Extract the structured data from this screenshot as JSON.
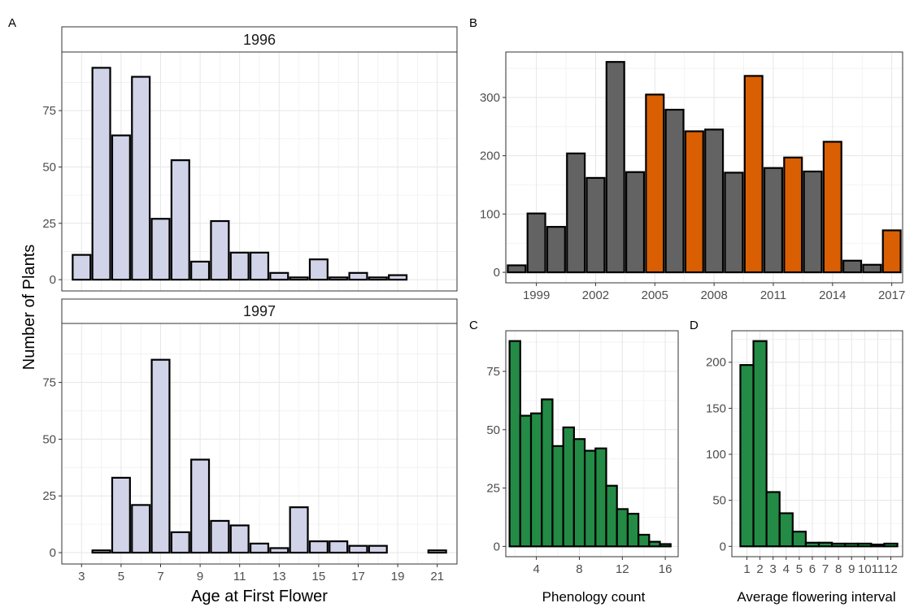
{
  "chart_data": [
    {
      "panel": "A",
      "type": "bar",
      "facet": "1996",
      "categories": [
        3,
        4,
        5,
        6,
        7,
        8,
        9,
        10,
        11,
        12,
        13,
        14,
        15,
        16,
        17,
        18,
        19
      ],
      "values": [
        11,
        94,
        64,
        90,
        27,
        53,
        8,
        26,
        12,
        12,
        3,
        1,
        9,
        1,
        3,
        1,
        2
      ],
      "xticks": [
        "3",
        "5",
        "7",
        "9",
        "11",
        "13",
        "15",
        "17",
        "19",
        "21"
      ],
      "xlim": [
        2,
        22
      ],
      "ylim": [
        -5,
        101
      ],
      "yticks": [
        "0",
        "25",
        "50",
        "75"
      ],
      "xlabel": "Age at First Flower",
      "ylabel": "Number of Plants",
      "fill": "#d1d3e8",
      "grid": true
    },
    {
      "panel": "A",
      "type": "bar",
      "facet": "1997",
      "categories": [
        4,
        5,
        6,
        7,
        8,
        9,
        10,
        11,
        12,
        13,
        14,
        15,
        16,
        17,
        18,
        21
      ],
      "values": [
        1,
        33,
        21,
        85,
        9,
        41,
        14,
        12,
        4,
        2,
        20,
        5,
        5,
        3,
        3,
        1
      ],
      "xticks": [
        "3",
        "5",
        "7",
        "9",
        "11",
        "13",
        "15",
        "17",
        "19",
        "21"
      ],
      "xlim": [
        2,
        22
      ],
      "ylim": [
        -5,
        101
      ],
      "yticks": [
        "0",
        "25",
        "50",
        "75"
      ],
      "xlabel": "Age at First Flower",
      "ylabel": "Number of Plants",
      "fill": "#d1d3e8",
      "grid": true
    },
    {
      "panel": "B",
      "type": "bar",
      "categories": [
        1998,
        1999,
        2000,
        2001,
        2002,
        2003,
        2004,
        2005,
        2006,
        2007,
        2008,
        2009,
        2010,
        2011,
        2012,
        2013,
        2014,
        2015,
        2016,
        2017
      ],
      "values": [
        12,
        101,
        78,
        204,
        162,
        361,
        172,
        305,
        279,
        242,
        245,
        171,
        337,
        179,
        197,
        173,
        224,
        20,
        13,
        72
      ],
      "highlight": [
        false,
        false,
        false,
        false,
        false,
        false,
        false,
        true,
        false,
        true,
        false,
        false,
        true,
        false,
        true,
        false,
        true,
        false,
        false,
        true
      ],
      "xticks": [
        "1999",
        "2002",
        "2005",
        "2008",
        "2011",
        "2014",
        "2017"
      ],
      "xlim": [
        1997.45,
        2017.55
      ],
      "ylim": [
        -18,
        378
      ],
      "yticks": [
        "0",
        "100",
        "200",
        "300"
      ],
      "colors": {
        "default": "#636363",
        "highlight": "#d95f02"
      },
      "grid": true
    },
    {
      "panel": "C",
      "type": "bar",
      "categories": [
        2,
        3,
        4,
        5,
        6,
        7,
        8,
        9,
        10,
        11,
        12,
        13,
        14,
        15,
        16
      ],
      "values": [
        88,
        56,
        57,
        63,
        43,
        51,
        46,
        41,
        42,
        26,
        16,
        14,
        5,
        2,
        1
      ],
      "xticks": [
        "4",
        "8",
        "12",
        "16"
      ],
      "xlim": [
        1.15,
        17.2
      ],
      "ylim": [
        -4.4,
        92.4
      ],
      "yticks": [
        "0",
        "25",
        "50",
        "75"
      ],
      "xlabel": "Phenology count",
      "fill": "#238b45",
      "grid": true
    },
    {
      "panel": "D",
      "type": "bar",
      "categories": [
        1,
        2,
        3,
        4,
        5,
        6,
        7,
        8,
        9,
        10,
        11,
        12
      ],
      "values": [
        197,
        223,
        59,
        36,
        16,
        4,
        4,
        3,
        3,
        3,
        2,
        3
      ],
      "xticks": [
        "1",
        "2",
        "3",
        "4",
        "5",
        "6",
        "7",
        "8",
        "9",
        "10",
        "11",
        "12"
      ],
      "xlim": [
        -0.15,
        12.9
      ],
      "ylim": [
        -11.2,
        234.2
      ],
      "yticks": [
        "0",
        "50",
        "100",
        "150",
        "200"
      ],
      "xlabel": "Average flowering interval",
      "fill": "#238b45",
      "grid": true
    }
  ],
  "labels": {
    "a": "A",
    "b": "B",
    "c": "C",
    "d": "D"
  },
  "strips": {
    "top": "1996",
    "bottom": "1997"
  },
  "axis_text": {
    "a_xlabel": "Age at First Flower",
    "a_ylabel": "Number of Plants",
    "c_xlabel": "Phenology count",
    "d_xlabel": "Average flowering interval"
  }
}
